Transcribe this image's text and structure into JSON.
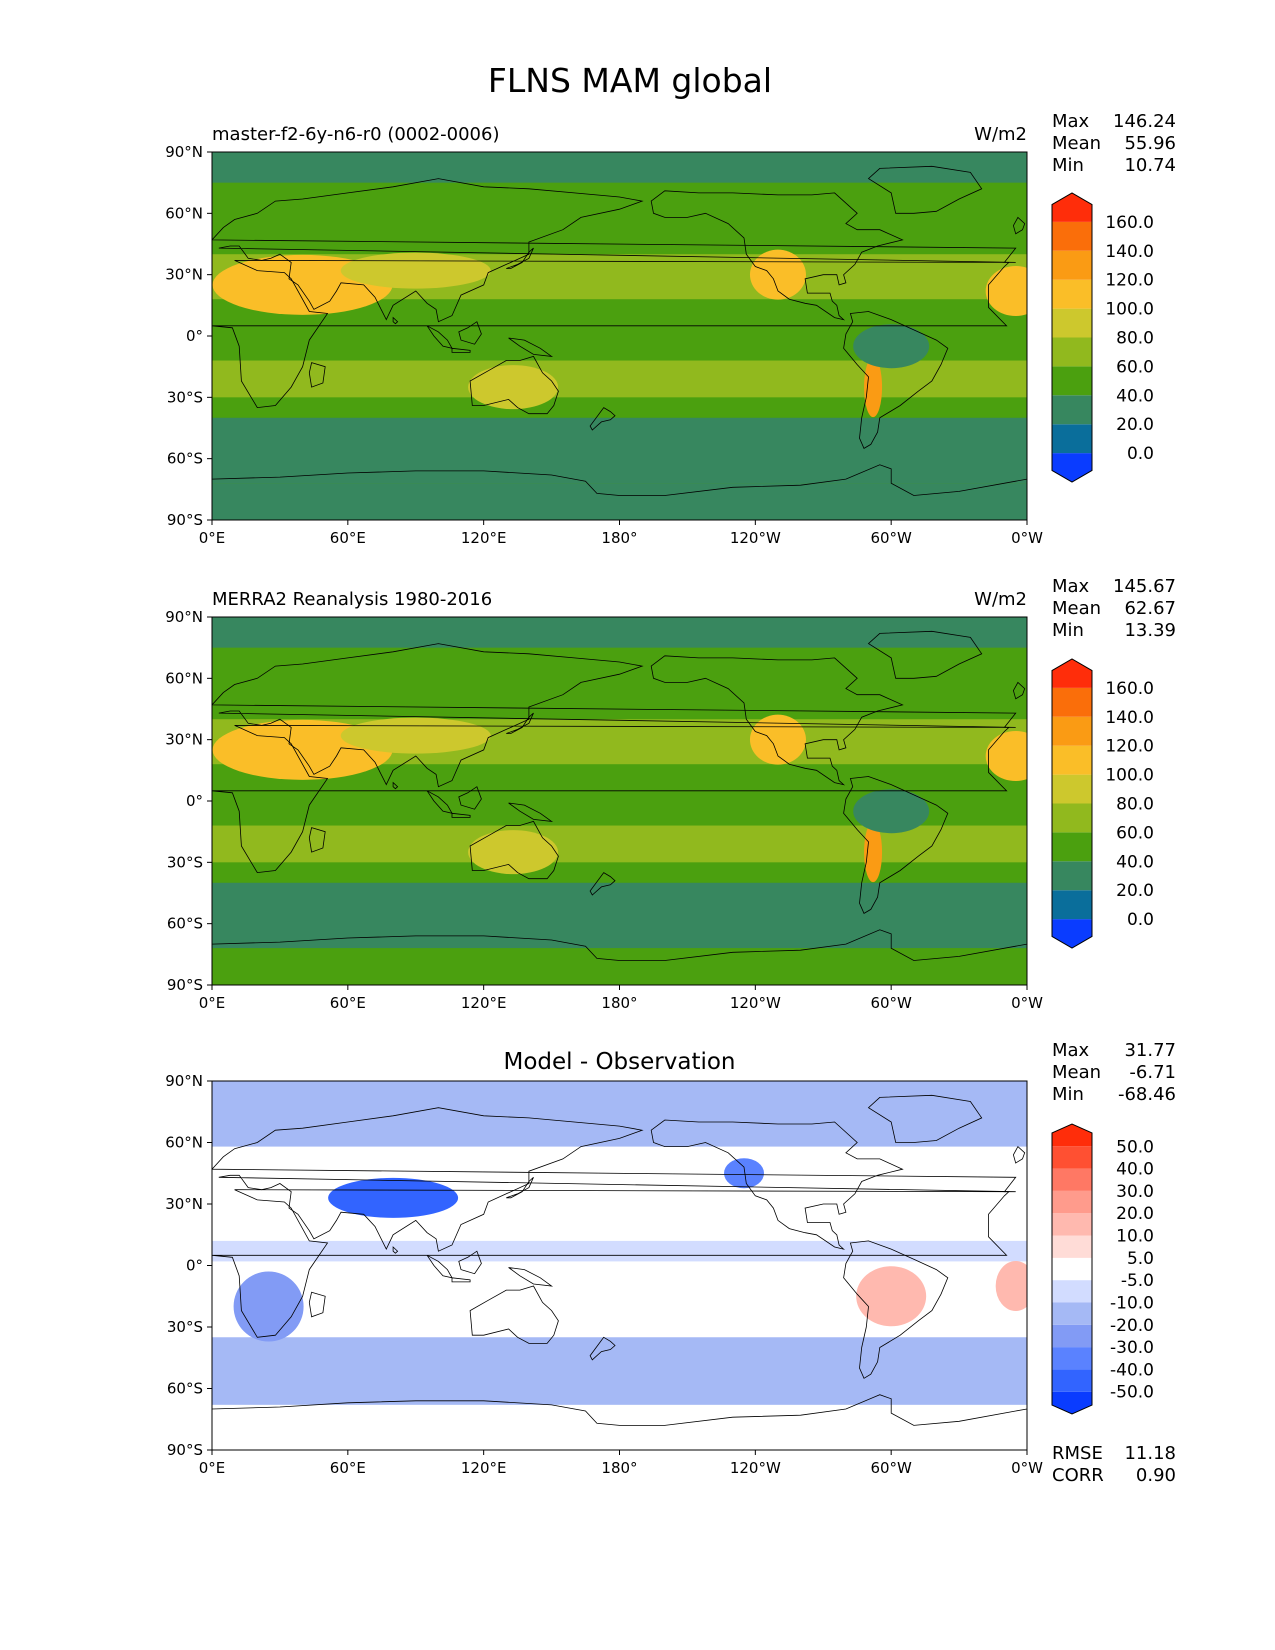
{
  "figure": {
    "title": "FLNS MAM global"
  },
  "chart_data": [
    {
      "type": "heatmap",
      "panel": "test",
      "left_title": "master-f2-6y-n6-r0 (0002-0006)",
      "right_title": "W/m2",
      "x_ticks": [
        "0°E",
        "60°E",
        "120°E",
        "180°",
        "120°W",
        "60°W",
        "0°W"
      ],
      "y_ticks": [
        "90°N",
        "60°N",
        "30°N",
        "0°",
        "30°S",
        "60°S",
        "90°S"
      ],
      "xlim": [
        0,
        360
      ],
      "ylim": [
        -90,
        90
      ],
      "stats": [
        {
          "label": "Max",
          "value": "146.24"
        },
        {
          "label": "Mean",
          "value": "55.96"
        },
        {
          "label": "Min",
          "value": "10.74"
        }
      ],
      "colorbar": {
        "levels": [
          "0.0",
          "20.0",
          "40.0",
          "60.0",
          "80.0",
          "100.0",
          "120.0",
          "140.0",
          "160.0"
        ],
        "colors": [
          "#0a3cff",
          "#0a6e9b",
          "#37875f",
          "#4ba00f",
          "#91b91e",
          "#cdc82d",
          "#fabe28",
          "#fa9b14",
          "#fa6e0a",
          "#ff2d0a"
        ],
        "extend": "both"
      }
    },
    {
      "type": "heatmap",
      "panel": "reference",
      "left_title": "MERRA2 Reanalysis 1980-2016",
      "right_title": "W/m2",
      "x_ticks": [
        "0°E",
        "60°E",
        "120°E",
        "180°",
        "120°W",
        "60°W",
        "0°W"
      ],
      "y_ticks": [
        "90°N",
        "60°N",
        "30°N",
        "0°",
        "30°S",
        "60°S",
        "90°S"
      ],
      "xlim": [
        0,
        360
      ],
      "ylim": [
        -90,
        90
      ],
      "stats": [
        {
          "label": "Max",
          "value": "145.67"
        },
        {
          "label": "Mean",
          "value": "62.67"
        },
        {
          "label": "Min",
          "value": "13.39"
        }
      ],
      "colorbar": {
        "levels": [
          "0.0",
          "20.0",
          "40.0",
          "60.0",
          "80.0",
          "100.0",
          "120.0",
          "140.0",
          "160.0"
        ],
        "colors": [
          "#0a3cff",
          "#0a6e9b",
          "#37875f",
          "#4ba00f",
          "#91b91e",
          "#cdc82d",
          "#fabe28",
          "#fa9b14",
          "#fa6e0a",
          "#ff2d0a"
        ],
        "extend": "both"
      }
    },
    {
      "type": "heatmap",
      "panel": "difference",
      "center_title": "Model - Observation",
      "x_ticks": [
        "0°E",
        "60°E",
        "120°E",
        "180°",
        "120°W",
        "60°W",
        "0°W"
      ],
      "y_ticks": [
        "90°N",
        "60°N",
        "30°N",
        "0°",
        "30°S",
        "60°S",
        "90°S"
      ],
      "xlim": [
        0,
        360
      ],
      "ylim": [
        -90,
        90
      ],
      "stats": [
        {
          "label": "Max",
          "value": "31.77"
        },
        {
          "label": "Mean",
          "value": "-6.71"
        },
        {
          "label": "Min",
          "value": "-68.46"
        }
      ],
      "metrics": [
        {
          "label": "RMSE",
          "value": "11.18"
        },
        {
          "label": "CORR",
          "value": "0.90"
        }
      ],
      "colorbar": {
        "levels": [
          "-50.0",
          "-40.0",
          "-30.0",
          "-20.0",
          "-10.0",
          "-5.0",
          "5.0",
          "10.0",
          "20.0",
          "30.0",
          "40.0",
          "50.0"
        ],
        "colors": [
          "#0a3cff",
          "#3264ff",
          "#5a82ff",
          "#829bf5",
          "#a5b9f5",
          "#d2dcff",
          "#ffffff",
          "#ffdcd7",
          "#ffb9af",
          "#ff9b8c",
          "#ff7864",
          "#ff5032",
          "#ff2d0a"
        ],
        "extend": "both"
      }
    }
  ]
}
